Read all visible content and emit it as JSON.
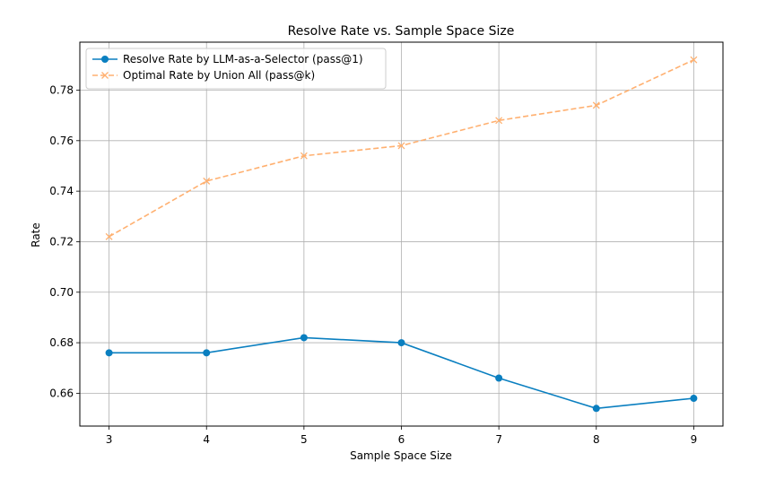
{
  "chart_data": {
    "type": "line",
    "title": "Resolve Rate vs. Sample Space Size",
    "xlabel": "Sample Space Size",
    "ylabel": "Rate",
    "x": [
      3,
      4,
      5,
      6,
      7,
      8,
      9
    ],
    "xlim": [
      2.7,
      9.3
    ],
    "ylim": [
      0.647,
      0.799
    ],
    "xticks": [
      3,
      4,
      5,
      6,
      7,
      8,
      9
    ],
    "yticks": [
      0.66,
      0.68,
      0.7,
      0.72,
      0.74,
      0.76,
      0.78
    ],
    "ytick_labels": [
      "0.66",
      "0.68",
      "0.70",
      "0.72",
      "0.74",
      "0.76",
      "0.78"
    ],
    "grid": true,
    "legend_position": "top-left",
    "series": [
      {
        "name": "Resolve Rate by LLM-as-a-Selector (pass@1)",
        "values": [
          0.676,
          0.676,
          0.682,
          0.68,
          0.666,
          0.654,
          0.658
        ],
        "color": "#0a7fc0",
        "line_style": "solid",
        "marker": "circle"
      },
      {
        "name": "Optimal Rate by Union All (pass@k)",
        "values": [
          0.722,
          0.744,
          0.754,
          0.758,
          0.768,
          0.774,
          0.792
        ],
        "color": "#ffb070",
        "line_style": "dashed",
        "marker": "x"
      }
    ]
  }
}
